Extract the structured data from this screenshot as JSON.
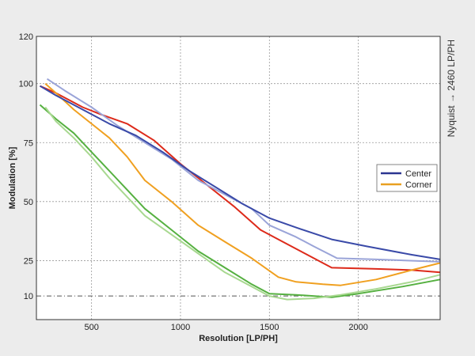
{
  "chart_data": {
    "type": "line",
    "xlabel": "Resolution [LP/PH]",
    "ylabel": "Modulation [%]",
    "side_note": "Nyquist → 2460 LP/PH",
    "xlim": [
      190,
      2460
    ],
    "ylim": [
      0,
      120
    ],
    "x_ticks": [
      500,
      1000,
      1500,
      2000
    ],
    "y_ticks": [
      10,
      25,
      50,
      75,
      100,
      120
    ],
    "grid": true,
    "reference_line": 10,
    "legend": {
      "position": "right",
      "entries": [
        {
          "label": "Center",
          "color": "#2b3590"
        },
        {
          "label": "Corner",
          "color": "#e8a020"
        }
      ]
    },
    "series": [
      {
        "color": "#3a4aa8",
        "points": [
          [
            210,
            99
          ],
          [
            300,
            95
          ],
          [
            450,
            89
          ],
          [
            600,
            83
          ],
          [
            750,
            78
          ],
          [
            900,
            71
          ],
          [
            1050,
            63
          ],
          [
            1200,
            56
          ],
          [
            1350,
            49
          ],
          [
            1500,
            43
          ],
          [
            1650,
            39
          ],
          [
            1850,
            34
          ],
          [
            2050,
            31
          ],
          [
            2300,
            27.5
          ],
          [
            2460,
            25.5
          ]
        ]
      },
      {
        "color": "#9aa4d8",
        "points": [
          [
            250,
            102
          ],
          [
            350,
            97
          ],
          [
            500,
            90
          ],
          [
            650,
            82
          ],
          [
            800,
            75
          ],
          [
            950,
            68
          ],
          [
            1100,
            59
          ],
          [
            1250,
            53
          ],
          [
            1400,
            47
          ],
          [
            1500,
            40
          ],
          [
            1650,
            35
          ],
          [
            1750,
            31
          ],
          [
            1880,
            26
          ],
          [
            2100,
            25.5
          ],
          [
            2460,
            24.5
          ]
        ]
      },
      {
        "color": "#dd2a1a",
        "points": [
          [
            210,
            99
          ],
          [
            300,
            96
          ],
          [
            450,
            90
          ],
          [
            550,
            87
          ],
          [
            700,
            83
          ],
          [
            850,
            76
          ],
          [
            1000,
            66
          ],
          [
            1150,
            57
          ],
          [
            1300,
            48
          ],
          [
            1450,
            38
          ],
          [
            1550,
            34
          ],
          [
            1700,
            28
          ],
          [
            1850,
            22
          ],
          [
            2100,
            21.5
          ],
          [
            2300,
            21
          ],
          [
            2460,
            20
          ]
        ]
      },
      {
        "color": "#f0a020",
        "points": [
          [
            240,
            100
          ],
          [
            300,
            96
          ],
          [
            400,
            89
          ],
          [
            500,
            83
          ],
          [
            600,
            77
          ],
          [
            700,
            69
          ],
          [
            800,
            59
          ],
          [
            950,
            50
          ],
          [
            1100,
            40
          ],
          [
            1250,
            33
          ],
          [
            1400,
            26
          ],
          [
            1550,
            18
          ],
          [
            1650,
            16
          ],
          [
            1800,
            15
          ],
          [
            1900,
            14.5
          ],
          [
            2100,
            17
          ],
          [
            2300,
            21
          ],
          [
            2460,
            24
          ]
        ]
      },
      {
        "color": "#55b040",
        "points": [
          [
            210,
            91
          ],
          [
            300,
            85
          ],
          [
            400,
            79
          ],
          [
            500,
            71
          ],
          [
            600,
            63
          ],
          [
            700,
            55
          ],
          [
            800,
            47
          ],
          [
            950,
            38
          ],
          [
            1100,
            29
          ],
          [
            1250,
            22
          ],
          [
            1400,
            15
          ],
          [
            1500,
            11
          ],
          [
            1650,
            10.5
          ],
          [
            1850,
            9.5
          ],
          [
            2000,
            11
          ],
          [
            2250,
            14
          ],
          [
            2460,
            17
          ]
        ]
      },
      {
        "color": "#a8d890",
        "points": [
          [
            240,
            90
          ],
          [
            300,
            84
          ],
          [
            400,
            77
          ],
          [
            500,
            69
          ],
          [
            600,
            60
          ],
          [
            700,
            52
          ],
          [
            800,
            44
          ],
          [
            950,
            36
          ],
          [
            1100,
            28
          ],
          [
            1250,
            20
          ],
          [
            1400,
            14
          ],
          [
            1500,
            10
          ],
          [
            1600,
            8.5
          ],
          [
            1750,
            9
          ],
          [
            1900,
            10.5
          ],
          [
            2100,
            13
          ],
          [
            2300,
            16
          ],
          [
            2460,
            19
          ]
        ]
      }
    ]
  }
}
